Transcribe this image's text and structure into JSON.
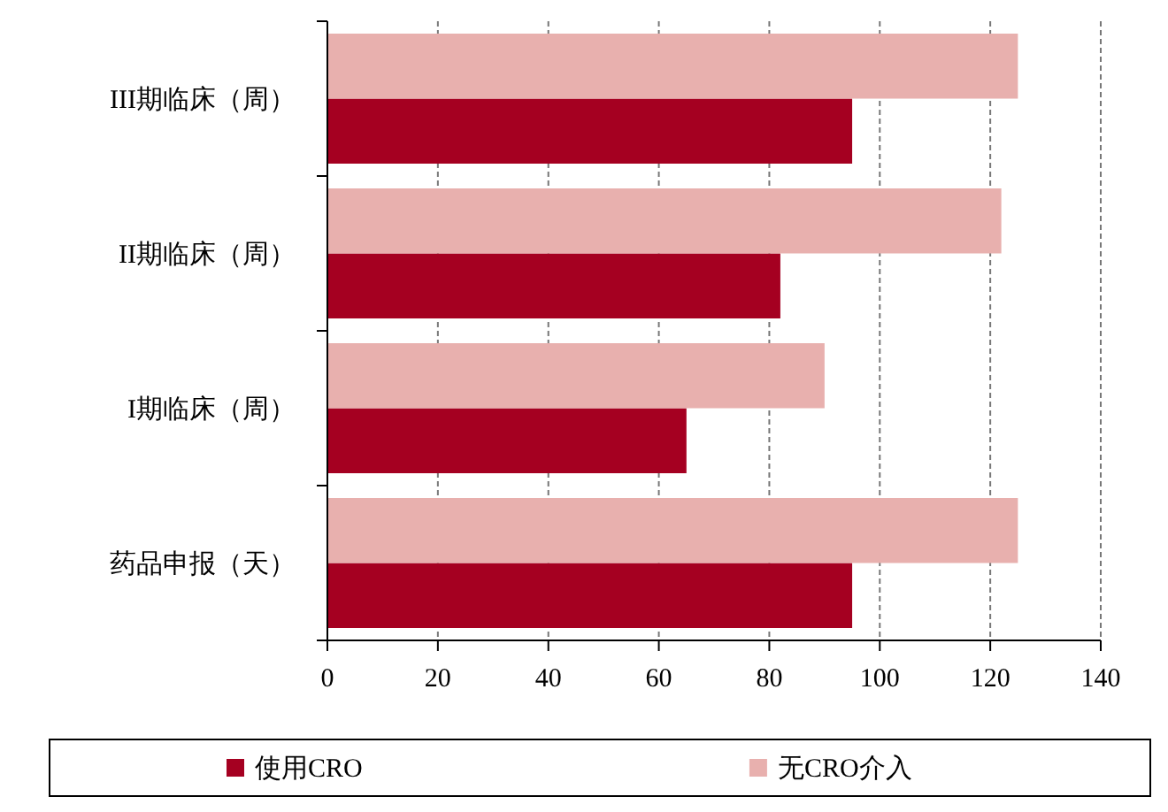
{
  "chart_data": {
    "type": "bar",
    "orientation": "horizontal",
    "categories": [
      "III期临床（周）",
      "II期临床（周）",
      "I期临床（周）",
      "药品申报（天）"
    ],
    "series": [
      {
        "name": "使用CRO",
        "color": "#a50021",
        "values": [
          95,
          82,
          65,
          95
        ]
      },
      {
        "name": "无CRO介入",
        "color": "#e8b0ae",
        "values": [
          125,
          122,
          90,
          125
        ]
      }
    ],
    "xlim": [
      0,
      140
    ],
    "xticks": [
      0,
      20,
      40,
      60,
      80,
      100,
      120,
      140
    ],
    "grid": "x",
    "legend": "bottom"
  }
}
